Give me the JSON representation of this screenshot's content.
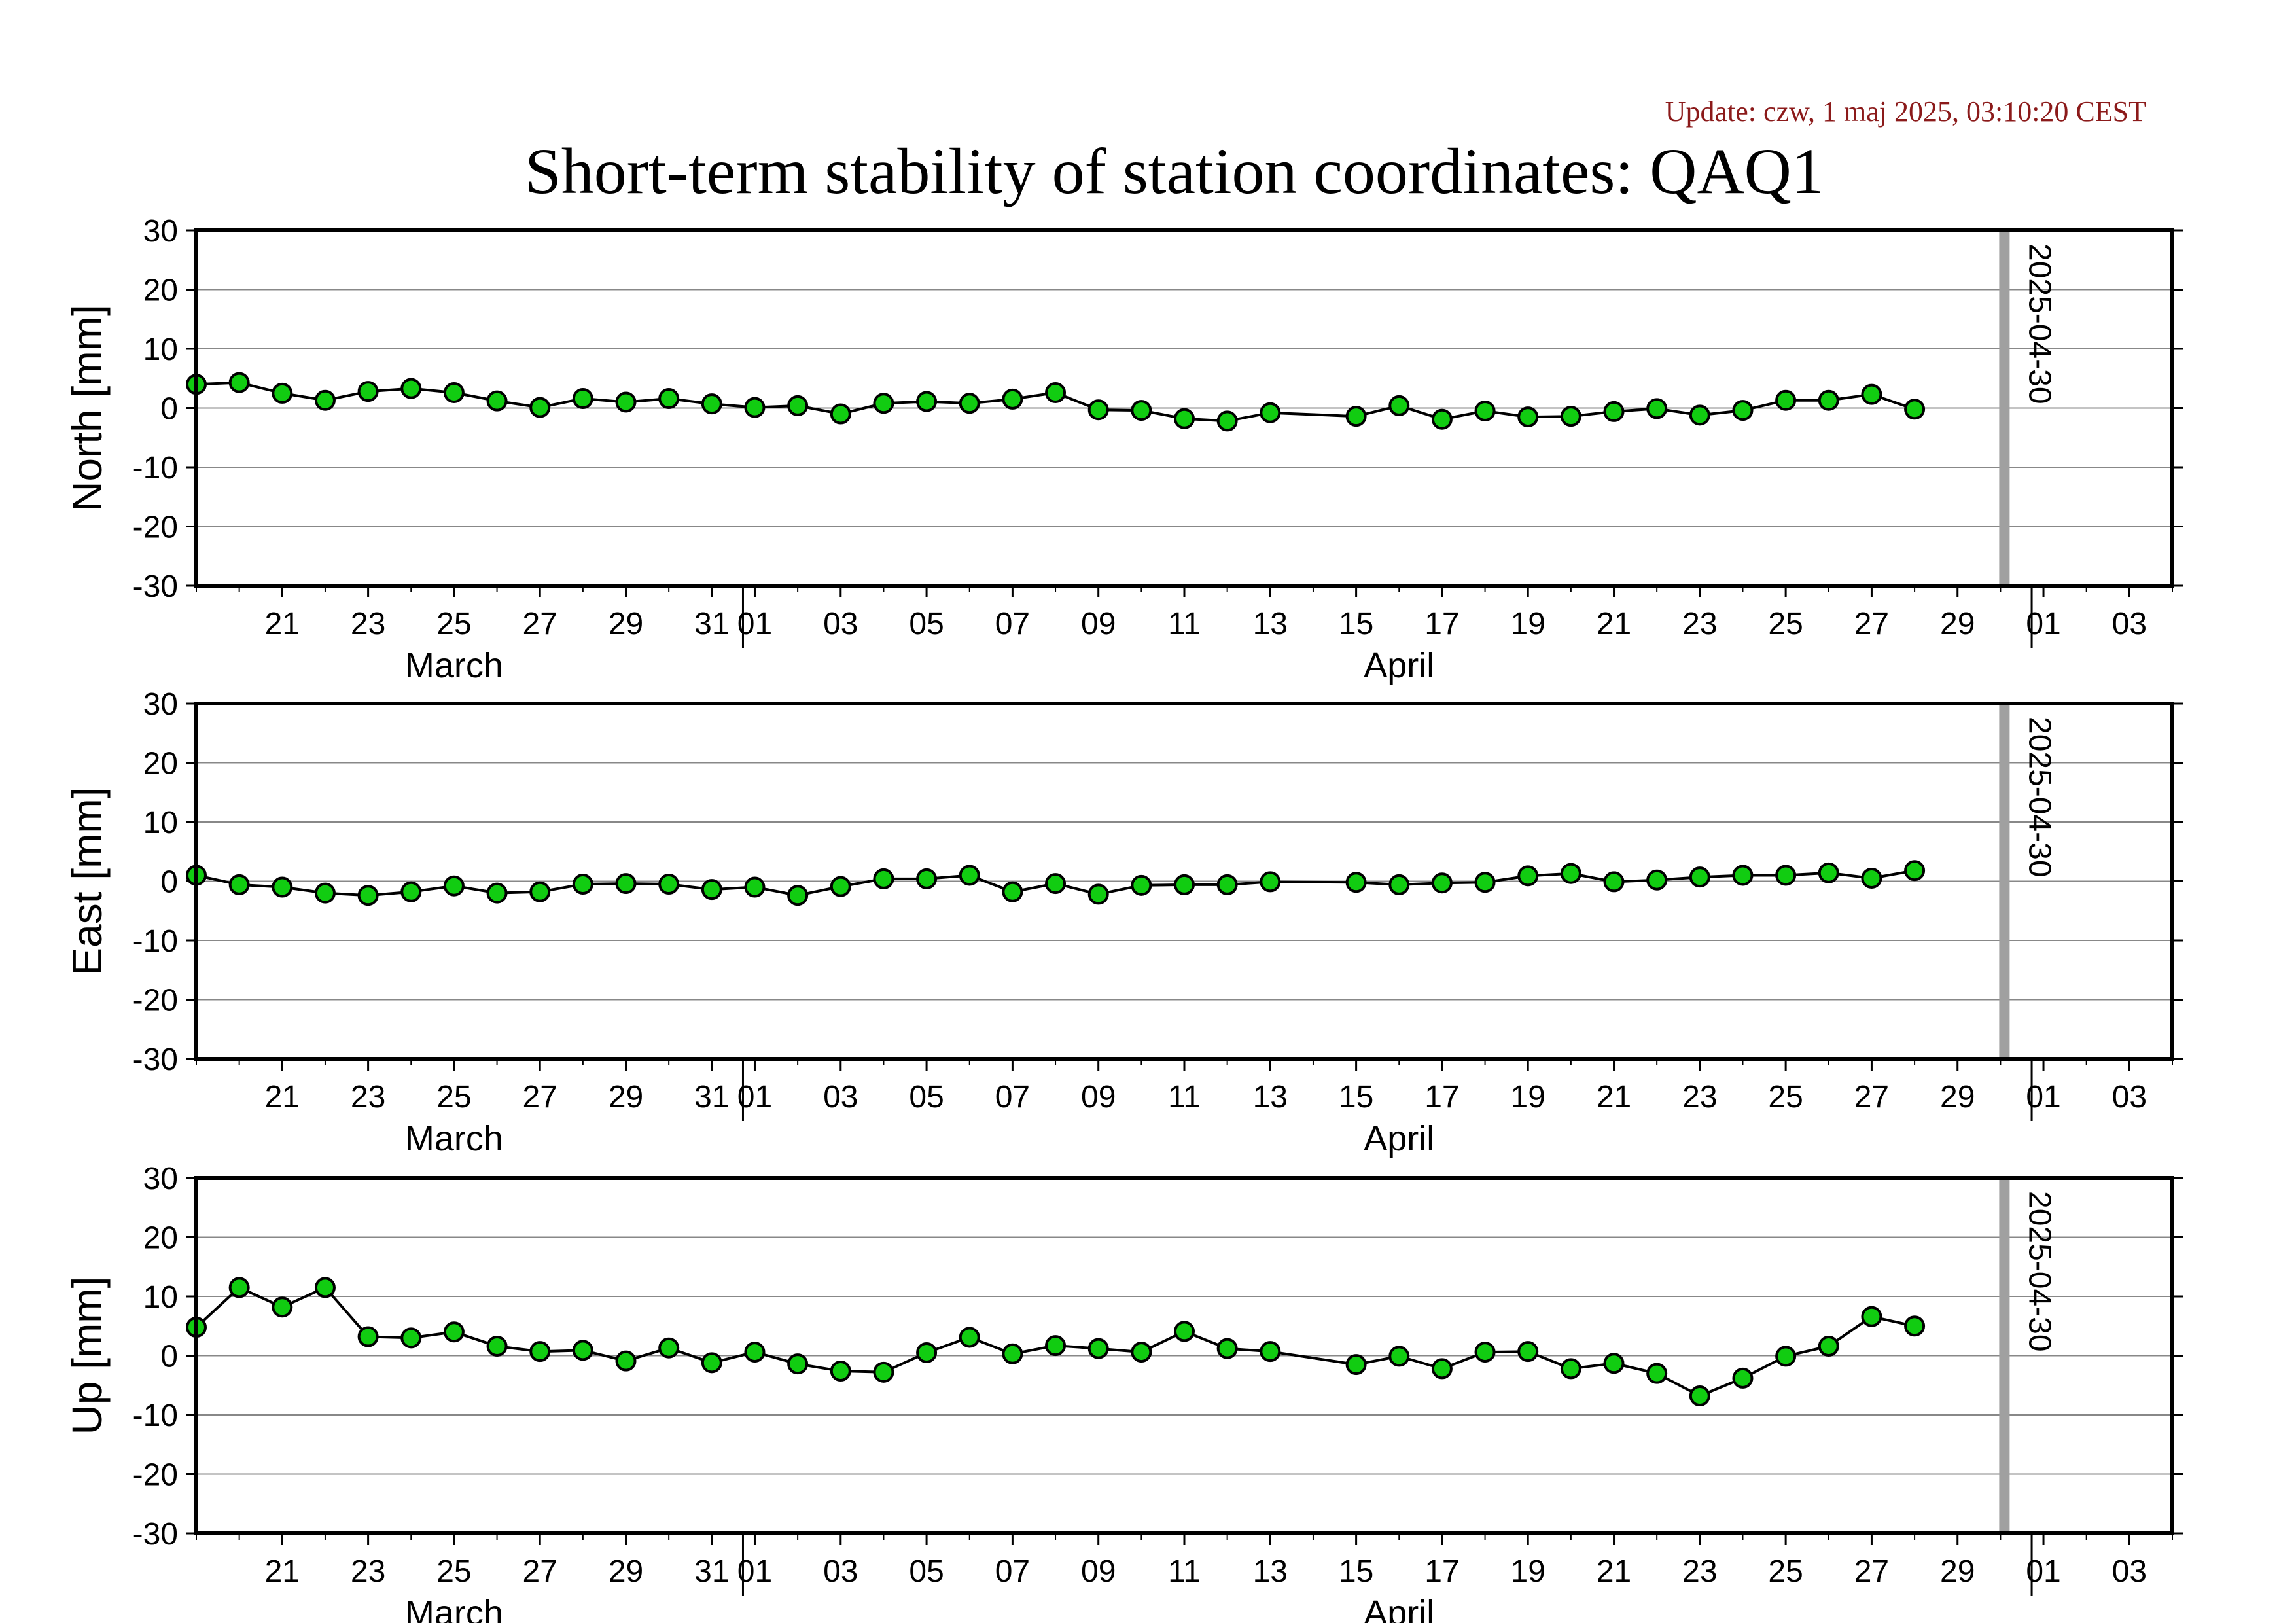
{
  "update_text": "Update: czw, 1 maj 2025, 03:10:20 CEST",
  "title": "Short-term stability of station coordinates: QAQ1",
  "colors": {
    "marker_fill": "#11cc11",
    "marker_stroke": "#000000",
    "line": "#000000",
    "grid": "#888888",
    "vline": "#a0a0a0",
    "update_text": "#8b1a1a"
  },
  "x_axis": {
    "start": "2025-03-19",
    "end": "2025-05-04",
    "tick_labels": [
      {
        "date": "2025-03-21",
        "label": "21"
      },
      {
        "date": "2025-03-23",
        "label": "23"
      },
      {
        "date": "2025-03-25",
        "label": "25"
      },
      {
        "date": "2025-03-27",
        "label": "27"
      },
      {
        "date": "2025-03-29",
        "label": "29"
      },
      {
        "date": "2025-03-31",
        "label": "31"
      },
      {
        "date": "2025-04-01",
        "label": "01"
      },
      {
        "date": "2025-04-03",
        "label": "03"
      },
      {
        "date": "2025-04-05",
        "label": "05"
      },
      {
        "date": "2025-04-07",
        "label": "07"
      },
      {
        "date": "2025-04-09",
        "label": "09"
      },
      {
        "date": "2025-04-11",
        "label": "11"
      },
      {
        "date": "2025-04-13",
        "label": "13"
      },
      {
        "date": "2025-04-15",
        "label": "15"
      },
      {
        "date": "2025-04-17",
        "label": "17"
      },
      {
        "date": "2025-04-19",
        "label": "19"
      },
      {
        "date": "2025-04-21",
        "label": "21"
      },
      {
        "date": "2025-04-23",
        "label": "23"
      },
      {
        "date": "2025-04-25",
        "label": "25"
      },
      {
        "date": "2025-04-27",
        "label": "27"
      },
      {
        "date": "2025-04-29",
        "label": "29"
      },
      {
        "date": "2025-05-01",
        "label": "01"
      },
      {
        "date": "2025-05-03",
        "label": "03"
      }
    ],
    "month_boundaries": [
      "2025-04-01",
      "2025-05-01"
    ],
    "month_labels": [
      {
        "date": "2025-03-25",
        "label": "March"
      },
      {
        "date": "2025-04-16",
        "label": "April"
      }
    ]
  },
  "chart_data": [
    {
      "type": "line",
      "ylabel": "North [mm]",
      "ylim": [
        -30,
        30
      ],
      "yticks": [
        -30,
        -20,
        -10,
        0,
        10,
        20,
        30
      ],
      "grid": true,
      "vline": {
        "date": "2025-04-30",
        "label": "2025-04-30"
      },
      "x": [
        "2025-03-19",
        "2025-03-20",
        "2025-03-21",
        "2025-03-22",
        "2025-03-23",
        "2025-03-24",
        "2025-03-25",
        "2025-03-26",
        "2025-03-27",
        "2025-03-28",
        "2025-03-29",
        "2025-03-30",
        "2025-03-31",
        "2025-04-01",
        "2025-04-02",
        "2025-04-03",
        "2025-04-04",
        "2025-04-05",
        "2025-04-06",
        "2025-04-07",
        "2025-04-08",
        "2025-04-09",
        "2025-04-10",
        "2025-04-11",
        "2025-04-12",
        "2025-04-13",
        "2025-04-15",
        "2025-04-16",
        "2025-04-17",
        "2025-04-18",
        "2025-04-19",
        "2025-04-20",
        "2025-04-21",
        "2025-04-22",
        "2025-04-23",
        "2025-04-24",
        "2025-04-25",
        "2025-04-26",
        "2025-04-27",
        "2025-04-28"
      ],
      "values": [
        4.0,
        4.3,
        2.5,
        1.3,
        2.8,
        3.3,
        2.6,
        1.2,
        0.1,
        1.6,
        1.0,
        1.6,
        0.7,
        0.1,
        0.4,
        -1.0,
        0.8,
        1.1,
        0.8,
        1.5,
        2.6,
        -0.3,
        -0.4,
        -1.8,
        -2.2,
        -0.8,
        -1.4,
        0.4,
        -1.9,
        -0.5,
        -1.5,
        -1.4,
        -0.6,
        -0.1,
        -1.2,
        -0.4,
        1.3,
        1.3,
        2.3,
        -0.2
      ]
    },
    {
      "type": "line",
      "ylabel": "East [mm]",
      "ylim": [
        -30,
        30
      ],
      "yticks": [
        -30,
        -20,
        -10,
        0,
        10,
        20,
        30
      ],
      "grid": true,
      "vline": {
        "date": "2025-04-30",
        "label": "2025-04-30"
      },
      "x": [
        "2025-03-19",
        "2025-03-20",
        "2025-03-21",
        "2025-03-22",
        "2025-03-23",
        "2025-03-24",
        "2025-03-25",
        "2025-03-26",
        "2025-03-27",
        "2025-03-28",
        "2025-03-29",
        "2025-03-30",
        "2025-03-31",
        "2025-04-01",
        "2025-04-02",
        "2025-04-03",
        "2025-04-04",
        "2025-04-05",
        "2025-04-06",
        "2025-04-07",
        "2025-04-08",
        "2025-04-09",
        "2025-04-10",
        "2025-04-11",
        "2025-04-12",
        "2025-04-13",
        "2025-04-15",
        "2025-04-16",
        "2025-04-17",
        "2025-04-18",
        "2025-04-19",
        "2025-04-20",
        "2025-04-21",
        "2025-04-22",
        "2025-04-23",
        "2025-04-24",
        "2025-04-25",
        "2025-04-26",
        "2025-04-27",
        "2025-04-28"
      ],
      "values": [
        1.0,
        -0.6,
        -1.0,
        -2.0,
        -2.4,
        -1.8,
        -0.8,
        -2.0,
        -1.8,
        -0.5,
        -0.4,
        -0.5,
        -1.4,
        -1.0,
        -2.4,
        -0.9,
        0.4,
        0.4,
        1.0,
        -1.8,
        -0.4,
        -2.2,
        -0.7,
        -0.6,
        -0.6,
        -0.1,
        -0.2,
        -0.6,
        -0.3,
        -0.2,
        0.9,
        1.3,
        -0.1,
        0.2,
        0.7,
        1.0,
        1.0,
        1.4,
        0.5,
        1.8
      ]
    },
    {
      "type": "line",
      "ylabel": "Up [mm]",
      "ylim": [
        -30,
        30
      ],
      "yticks": [
        -30,
        -20,
        -10,
        0,
        10,
        20,
        30
      ],
      "grid": true,
      "vline": {
        "date": "2025-04-30",
        "label": "2025-04-30"
      },
      "x": [
        "2025-03-19",
        "2025-03-20",
        "2025-03-21",
        "2025-03-22",
        "2025-03-23",
        "2025-03-24",
        "2025-03-25",
        "2025-03-26",
        "2025-03-27",
        "2025-03-28",
        "2025-03-29",
        "2025-03-30",
        "2025-03-31",
        "2025-04-01",
        "2025-04-02",
        "2025-04-03",
        "2025-04-04",
        "2025-04-05",
        "2025-04-06",
        "2025-04-07",
        "2025-04-08",
        "2025-04-09",
        "2025-04-10",
        "2025-04-11",
        "2025-04-12",
        "2025-04-13",
        "2025-04-15",
        "2025-04-16",
        "2025-04-17",
        "2025-04-18",
        "2025-04-19",
        "2025-04-20",
        "2025-04-21",
        "2025-04-22",
        "2025-04-23",
        "2025-04-24",
        "2025-04-25",
        "2025-04-26",
        "2025-04-27",
        "2025-04-28"
      ],
      "values": [
        4.8,
        11.5,
        8.2,
        11.5,
        3.2,
        3.0,
        4.0,
        1.6,
        0.7,
        0.9,
        -0.9,
        1.3,
        -1.2,
        0.6,
        -1.4,
        -2.6,
        -2.8,
        0.5,
        3.1,
        0.3,
        1.7,
        1.2,
        0.6,
        4.1,
        1.2,
        0.7,
        -1.5,
        -0.1,
        -2.2,
        0.6,
        0.7,
        -2.2,
        -1.3,
        -3.0,
        -6.8,
        -3.8,
        -0.1,
        1.6,
        6.6,
        5.0
      ]
    }
  ]
}
